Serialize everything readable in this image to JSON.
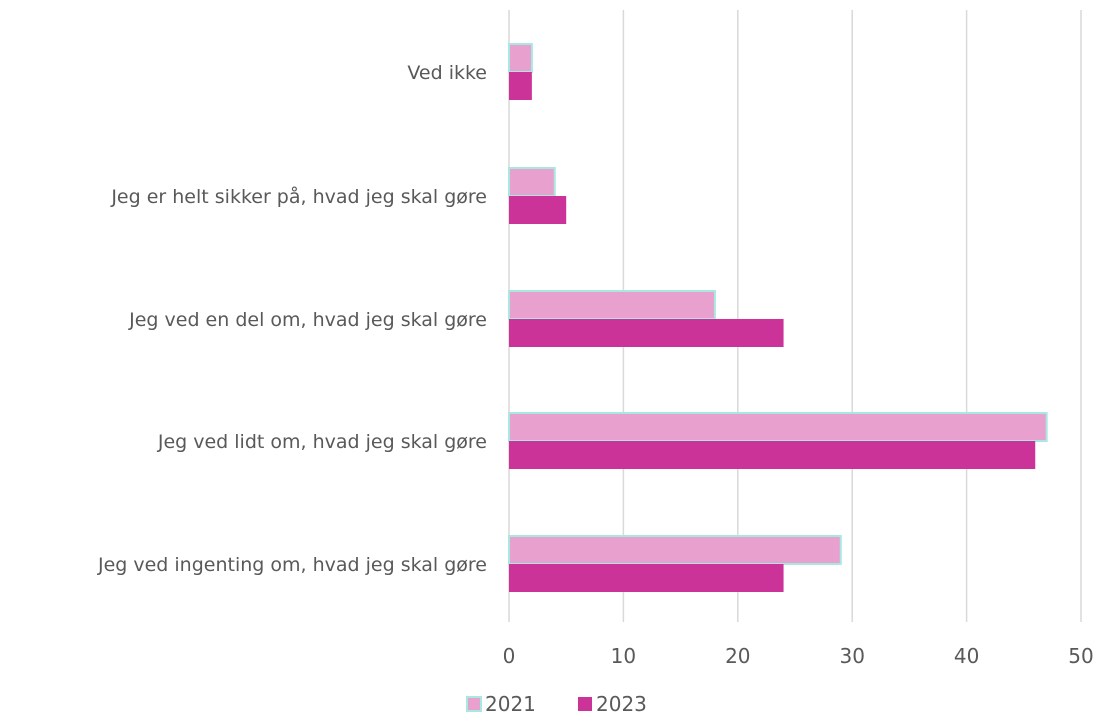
{
  "chart_data": {
    "type": "bar",
    "orientation": "horizontal",
    "categories": [
      "Ved ikke",
      "Jeg er helt sikker på, hvad jeg skal gøre",
      "Jeg ved en del om, hvad jeg skal gøre",
      "Jeg ved lidt om, hvad jeg skal gøre",
      "Jeg ved ingenting om, hvad jeg skal gøre"
    ],
    "series": [
      {
        "name": "2021",
        "values": [
          2,
          4,
          18,
          47,
          29
        ],
        "color": "#e8a0cf",
        "outline": "#a8e8e0"
      },
      {
        "name": "2023",
        "values": [
          2,
          5,
          24,
          46,
          24
        ],
        "color": "#cc3399"
      }
    ],
    "xlim": [
      0,
      50
    ],
    "xticks": [
      "0",
      "10",
      "20",
      "30",
      "40",
      "50"
    ],
    "grid": "vertical",
    "legend_position": "bottom",
    "title": "",
    "xlabel": "",
    "ylabel": ""
  }
}
